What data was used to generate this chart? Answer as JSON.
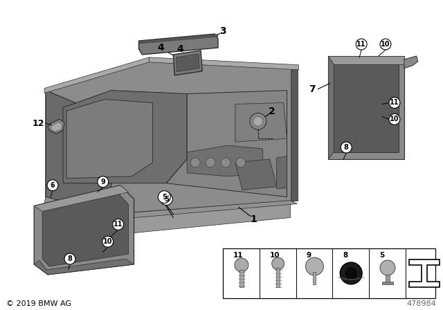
{
  "bg_color": "#ffffff",
  "fig_width": 6.4,
  "fig_height": 4.48,
  "copyright": "© 2019 BMW AG",
  "part_number": "478984",
  "tray_outer_color": "#8c8c8c",
  "tray_inner_color": "#6e6e6e",
  "tray_floor_color": "#7a7a7a",
  "tray_edge_color": "#2a2a2a",
  "box_outer_color": "#8c8c8c",
  "box_inner_color": "#646464",
  "part3_color": "#7a7a7a",
  "part4_color": "#7a7a7a"
}
